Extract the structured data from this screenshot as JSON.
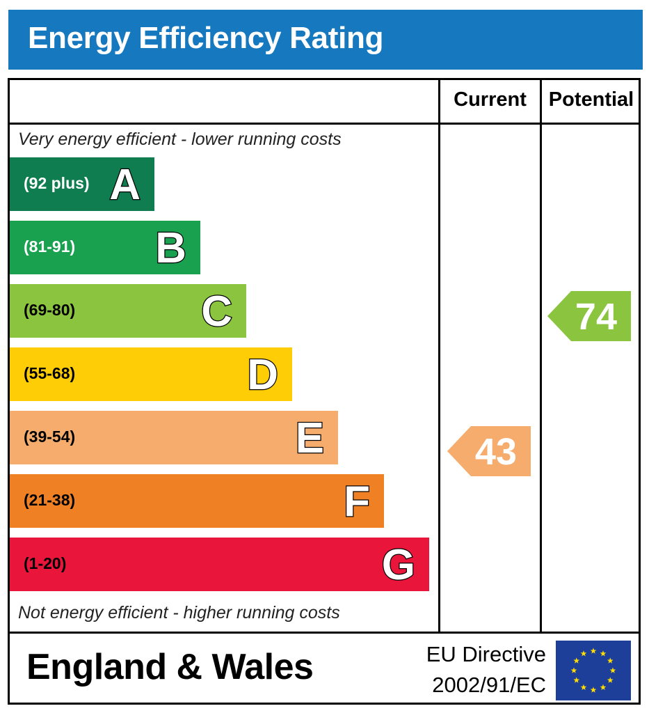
{
  "title": "Energy Efficiency Rating",
  "columns": {
    "current": "Current",
    "potential": "Potential"
  },
  "captions": {
    "top": "Very energy efficient - lower running costs",
    "bottom": "Not energy efficient - higher running costs"
  },
  "footer": {
    "country": "England & Wales",
    "directive_line1": "EU Directive",
    "directive_line2": "2002/91/EC"
  },
  "colors": {
    "title_bar": "#1678bf",
    "eu_flag": "#1d3f99",
    "eu_stars": "#ffdd00"
  },
  "chart_data": {
    "type": "bar",
    "categories": [
      "A",
      "B",
      "C",
      "D",
      "E",
      "F",
      "G"
    ],
    "ranges": [
      "(92 plus)",
      "(81-91)",
      "(69-80)",
      "(55-68)",
      "(39-54)",
      "(21-38)",
      "(1-20)"
    ],
    "band_colors": [
      "#0f7d4f",
      "#19a150",
      "#8bc43f",
      "#fecd05",
      "#f6ac6c",
      "#ef8023",
      "#e9153b"
    ],
    "range_text_colors": [
      "#ffffff",
      "#ffffff",
      "#000000",
      "#000000",
      "#000000",
      "#000000",
      "#000000"
    ],
    "current": {
      "value": 43,
      "band": "E",
      "color": "#f6ac6c"
    },
    "potential": {
      "value": 74,
      "band": "C",
      "color": "#8bc43f"
    }
  }
}
